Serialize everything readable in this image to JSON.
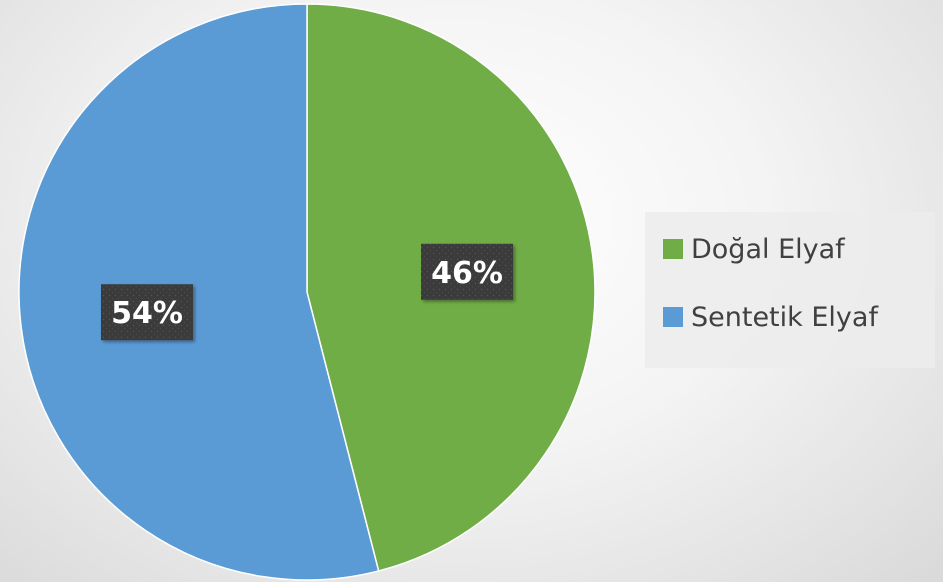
{
  "chart_data": {
    "type": "pie",
    "slices": [
      {
        "name": "Doğal Elyaf",
        "value": 46,
        "label": "46%",
        "color": "#70AD47"
      },
      {
        "name": "Sentetik Elyaf",
        "value": 54,
        "label": "54%",
        "color": "#5B9BD5"
      }
    ],
    "start_angle_deg": 0,
    "direction": "clockwise",
    "legend_position": "right",
    "data_label_style": "white bold text on dark textured box"
  }
}
